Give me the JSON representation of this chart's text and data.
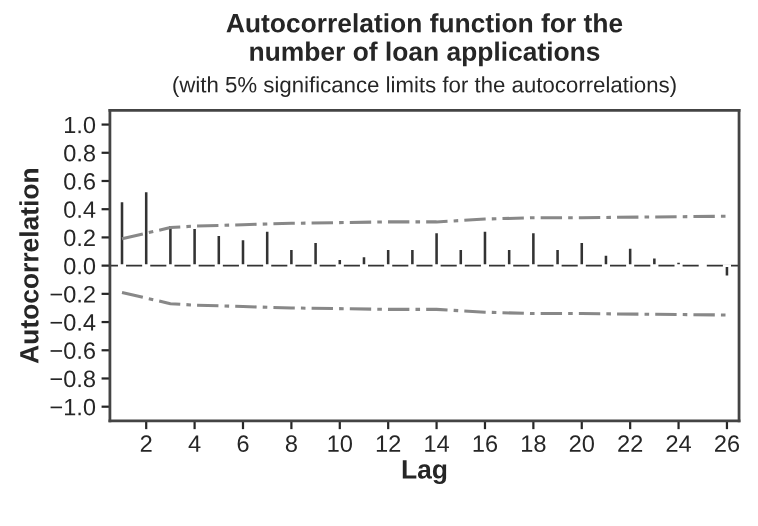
{
  "chart_data": {
    "type": "bar",
    "title": "Autocorrelation function for the\nnumber of loan applications",
    "subtitle": "(with 5% significance limits for the autocorrelations)",
    "xlabel": "Lag",
    "ylabel": "Autocorrelation",
    "x": [
      1,
      2,
      3,
      4,
      5,
      6,
      7,
      8,
      9,
      10,
      11,
      12,
      13,
      14,
      15,
      16,
      17,
      18,
      19,
      20,
      21,
      22,
      23,
      24,
      25,
      26
    ],
    "series": [
      {
        "color": "#333333",
        "values": [
          0.46,
          0.53,
          0.29,
          0.27,
          0.22,
          0.19,
          0.25,
          0.12,
          0.17,
          0.05,
          0.07,
          0.12,
          0.12,
          0.24,
          0.12,
          0.25,
          0.12,
          0.24,
          0.12,
          0.17,
          0.08,
          0.13,
          0.06,
          0.03,
          0.01,
          -0.08
        ]
      },
      {
        "type": "line",
        "color": "#888888",
        "line_style": "dashed",
        "x": [
          1,
          2,
          3,
          4,
          6,
          8,
          12,
          14,
          16,
          18,
          20,
          26
        ],
        "values": [
          0.19,
          0.23,
          0.27,
          0.28,
          0.29,
          0.3,
          0.31,
          0.31,
          0.33,
          0.34,
          0.34,
          0.35
        ]
      },
      {
        "type": "line",
        "color": "#888888",
        "line_style": "dashed",
        "x": [
          1,
          2,
          3,
          4,
          6,
          8,
          12,
          14,
          16,
          18,
          20,
          26
        ],
        "values": [
          -0.19,
          -0.23,
          -0.27,
          -0.28,
          -0.29,
          -0.3,
          -0.31,
          -0.31,
          -0.33,
          -0.34,
          -0.34,
          -0.35
        ]
      }
    ],
    "ref_lines": [
      {
        "axis": "y",
        "value": 0
      }
    ],
    "xlim": [
      0.5,
      26.5
    ],
    "ylim": [
      -1.1,
      1.1
    ],
    "xticks": [
      2,
      4,
      6,
      8,
      10,
      12,
      14,
      16,
      18,
      20,
      22,
      24,
      26
    ],
    "yticks": [
      {
        "value": -1.0,
        "label": "−1.0"
      },
      {
        "value": -0.8,
        "label": "−0.8"
      },
      {
        "value": -0.6,
        "label": "−0.6"
      },
      {
        "value": -0.4,
        "label": "−0.4"
      },
      {
        "value": -0.2,
        "label": "−0.2"
      },
      {
        "value": 0.0,
        "label": "0.0"
      },
      {
        "value": 0.2,
        "label": "0.2"
      },
      {
        "value": 0.4,
        "label": "0.4"
      },
      {
        "value": 0.6,
        "label": "0.6"
      },
      {
        "value": 0.8,
        "label": "0.8"
      },
      {
        "value": 1.0,
        "label": "1.0"
      }
    ],
    "grid": false,
    "legend": false
  }
}
